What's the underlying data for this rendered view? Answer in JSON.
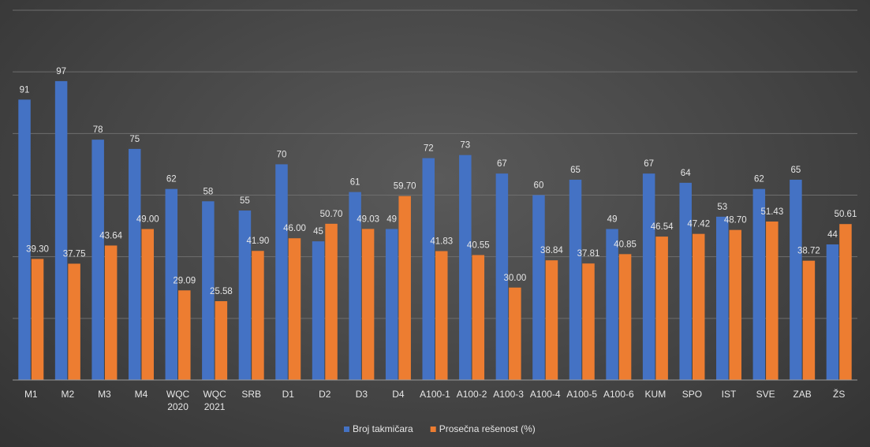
{
  "chart_data": {
    "type": "bar",
    "categories": [
      "M1",
      "M2",
      "M3",
      "M4",
      "WQC 2020",
      "WQC 2021",
      "SRB",
      "D1",
      "D2",
      "D3",
      "D4",
      "A100-1",
      "A100-2",
      "A100-3",
      "A100-4",
      "A100-5",
      "A100-6",
      "KUM",
      "SPO",
      "IST",
      "SVE",
      "ZAB",
      "ŽS"
    ],
    "series": [
      {
        "name": "Broj takmičara",
        "color": "#4472C4",
        "values": [
          91,
          97,
          78,
          75,
          62,
          58,
          55,
          70,
          45,
          61,
          49,
          72,
          73,
          67,
          60,
          65,
          49,
          67,
          64,
          53,
          62,
          65,
          44
        ],
        "labels": [
          "91",
          "97",
          "78",
          "75",
          "62",
          "58",
          "55",
          "70",
          "45",
          "61",
          "49",
          "72",
          "73",
          "67",
          "60",
          "65",
          "49",
          "67",
          "64",
          "53",
          "62",
          "65",
          "44"
        ]
      },
      {
        "name": "Prosečna rešenost (%)",
        "color": "#ED7D31",
        "values": [
          39.3,
          37.75,
          43.64,
          49.0,
          29.09,
          25.58,
          41.9,
          46.0,
          50.7,
          49.03,
          59.7,
          41.83,
          40.55,
          30.0,
          38.84,
          37.81,
          40.85,
          46.54,
          47.42,
          48.7,
          51.43,
          38.72,
          50.61
        ],
        "labels": [
          "39.30",
          "37.75",
          "43.64",
          "49.00",
          "29.09",
          "25.58",
          "41.90",
          "46.00",
          "50.70",
          "49.03",
          "59.70",
          "41.83",
          "40.55",
          "30.00",
          "38.84",
          "37.81",
          "40.85",
          "46.54",
          "47.42",
          "48.70",
          "51.43",
          "38.72",
          "50.61"
        ]
      }
    ],
    "ylim": [
      0,
      120
    ],
    "grid": true,
    "legend": "bottom-center",
    "title": "",
    "xlabel": "",
    "ylabel": ""
  }
}
